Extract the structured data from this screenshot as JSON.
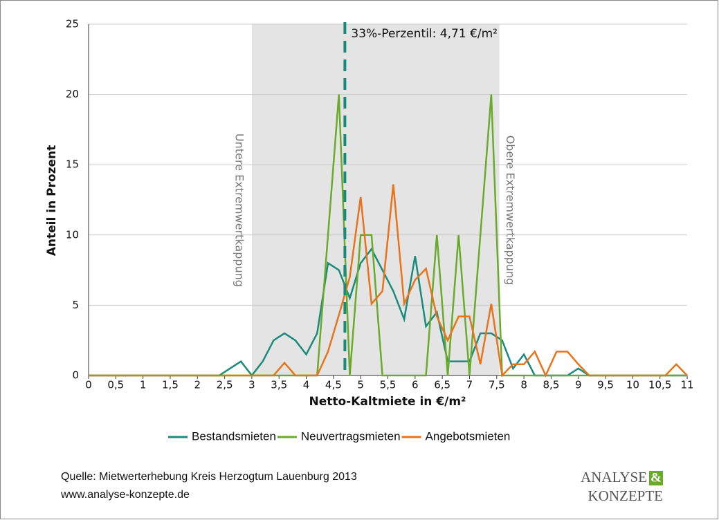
{
  "chart_data": {
    "type": "line",
    "xlabel": "Netto-Kaltmiete in €/m²",
    "ylabel": "Anteil in Prozent",
    "x": [
      0,
      0.2,
      0.4,
      0.6,
      0.8,
      1,
      1.2,
      1.4,
      1.6,
      1.8,
      2,
      2.2,
      2.4,
      2.6,
      2.8,
      3,
      3.2,
      3.4,
      3.6,
      3.8,
      4,
      4.2,
      4.4,
      4.6,
      4.8,
      5,
      5.2,
      5.4,
      5.6,
      5.8,
      6,
      6.2,
      6.4,
      6.6,
      6.8,
      7,
      7.2,
      7.4,
      7.6,
      7.8,
      8,
      8.2,
      8.4,
      8.6,
      8.8,
      9,
      9.2,
      9.4,
      9.6,
      9.8,
      10,
      10.2,
      10.4,
      10.6,
      10.8,
      11
    ],
    "series": [
      {
        "name": "Bestandsmieten",
        "color": "#1a8a7a",
        "values": [
          0,
          0,
          0,
          0,
          0,
          0,
          0,
          0,
          0,
          0,
          0,
          0,
          0,
          0.5,
          1,
          0,
          1,
          2.5,
          3,
          2.5,
          1.5,
          3,
          8,
          7.5,
          5.5,
          8,
          9,
          7.5,
          6,
          4,
          8.5,
          3.5,
          4.5,
          1,
          1,
          1,
          3,
          3,
          2.5,
          0.5,
          1.5,
          0,
          0,
          0,
          0,
          0.5,
          0,
          0,
          0,
          0,
          0,
          0,
          0,
          0,
          0,
          0
        ]
      },
      {
        "name": "Neuvertragsmieten",
        "color": "#6aaa2a",
        "values": [
          0,
          0,
          0,
          0,
          0,
          0,
          0,
          0,
          0,
          0,
          0,
          0,
          0,
          0,
          0,
          0,
          0,
          0,
          0,
          0,
          0,
          0,
          10,
          20,
          0,
          10,
          10,
          0,
          0,
          0,
          0,
          0,
          10,
          0,
          10,
          0,
          10,
          20,
          0,
          0,
          0,
          0,
          0,
          0,
          0,
          0,
          0,
          0,
          0,
          0,
          0,
          0,
          0,
          0,
          0,
          0
        ]
      },
      {
        "name": "Angebotsmieten",
        "color": "#e8731a",
        "values": [
          0,
          0,
          0,
          0,
          0,
          0,
          0,
          0,
          0,
          0,
          0,
          0,
          0,
          0,
          0,
          0,
          0,
          0,
          0.9,
          0,
          0,
          0,
          1.7,
          4.3,
          7,
          12.7,
          5.1,
          6,
          13.6,
          5.1,
          6.8,
          7.6,
          4.2,
          2.5,
          4.2,
          4.2,
          0.8,
          5.1,
          0,
          0.8,
          0.8,
          1.7,
          0,
          1.7,
          1.7,
          0.8,
          0,
          0,
          0,
          0,
          0,
          0,
          0,
          0,
          0.8,
          0
        ]
      }
    ],
    "xlim": [
      0,
      11
    ],
    "ylim": [
      0,
      25
    ],
    "xticks": [
      0,
      {
        "value": 0.5,
        "label": "0,5"
      },
      1,
      {
        "value": 1.5,
        "label": "1,5"
      },
      2,
      {
        "value": 2.5,
        "label": "2,5"
      },
      3,
      {
        "value": 3.5,
        "label": "3,5"
      },
      4,
      {
        "value": 4.5,
        "label": "4,5"
      },
      5,
      {
        "value": 5.5,
        "label": "5,5"
      },
      6,
      {
        "value": 6.5,
        "label": "6,5"
      },
      7,
      {
        "value": 7.5,
        "label": "7,5"
      },
      8,
      {
        "value": 8.5,
        "label": "8,5"
      },
      9,
      {
        "value": 9.5,
        "label": "9,5"
      },
      10,
      {
        "value": 10.5,
        "label": "10,5"
      },
      11
    ],
    "yticks": [
      0,
      5,
      10,
      15,
      20,
      25
    ],
    "grid": true,
    "legend": "bottom",
    "shade": [
      3,
      7.55
    ],
    "shade_color": "#e4e4e4",
    "shade_labels": [
      "Untere Extremwertkappung",
      "Obere Extremwertkappung"
    ],
    "vline": {
      "x": 4.71,
      "label": "33%-Perzentil: 4,71 €/m²",
      "color": "#1a8a7a"
    }
  },
  "source": [
    "Quelle: Mietwerterhebung Kreis Herzogtum Lauenburg 2013",
    "www.analyse-konzepte.de"
  ],
  "logo": [
    "ANALYSE",
    "&",
    "KONZEPTE"
  ]
}
